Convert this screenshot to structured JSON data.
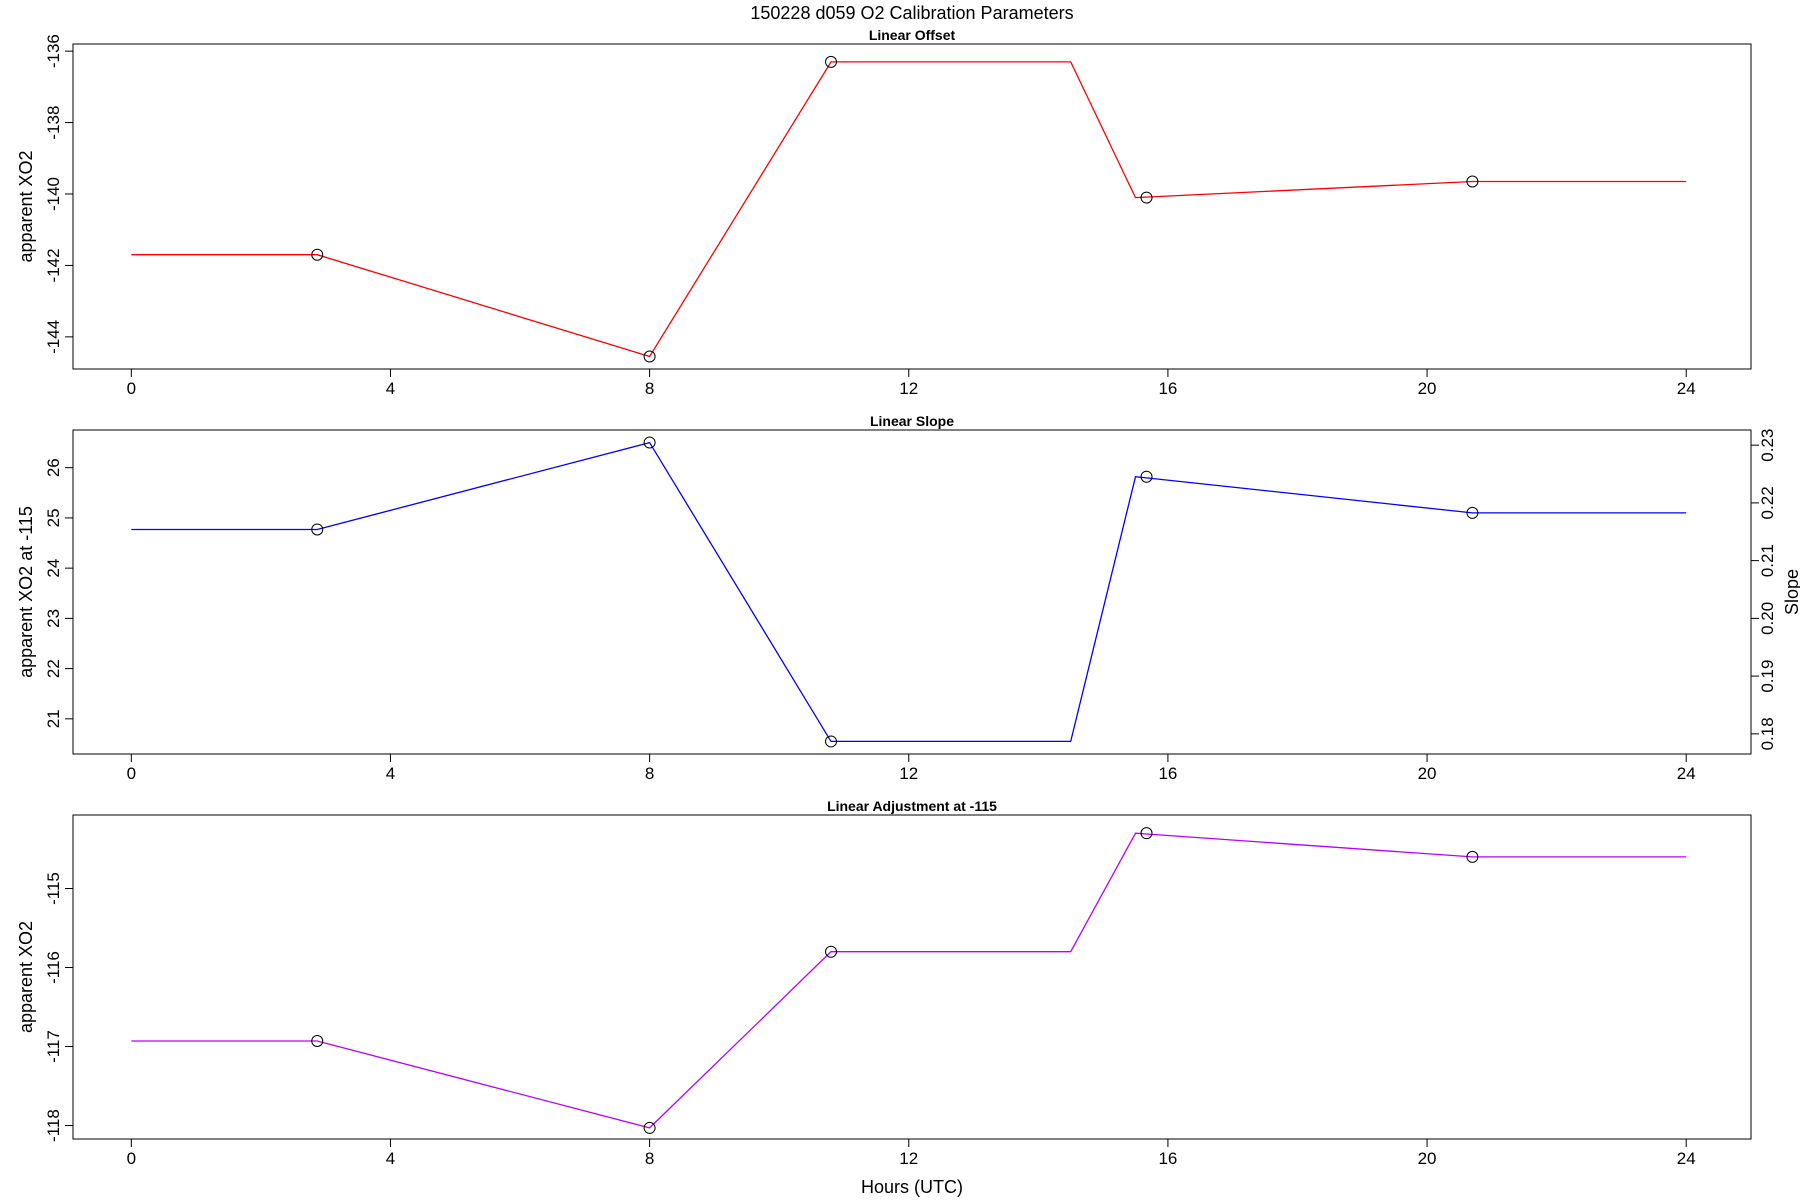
{
  "title": "150228   d059   O2 Calibration Parameters",
  "chart_data": [
    {
      "type": "line",
      "title": "Linear Offset",
      "xlabel": "",
      "ylabel": "apparent XO2",
      "xlim": [
        -0.9,
        25
      ],
      "ylim": [
        -144.9,
        -135.8
      ],
      "x_ticks": [
        0,
        4,
        8,
        12,
        16,
        20,
        24
      ],
      "y_ticks": [
        -144,
        -142,
        -140,
        -138,
        -136
      ],
      "color": "#ff0000",
      "line": {
        "x": [
          0,
          2.87,
          8.0,
          10.8,
          14.5,
          15.5,
          20.7,
          24
        ],
        "y": [
          -141.7,
          -141.7,
          -144.55,
          -136.3,
          -136.3,
          -140.1,
          -139.65,
          -139.65
        ]
      },
      "points": {
        "x": [
          2.87,
          8.0,
          10.8,
          15.67,
          20.7
        ],
        "y": [
          -141.7,
          -144.55,
          -136.3,
          -140.1,
          -139.65
        ]
      }
    },
    {
      "type": "line",
      "title": "Linear Slope",
      "xlabel": "",
      "ylabel": "apparent XO2 at -115",
      "y2label": "Slope",
      "xlim": [
        -0.9,
        25
      ],
      "ylim": [
        20.3,
        26.75
      ],
      "x_ticks": [
        0,
        4,
        8,
        12,
        16,
        20,
        24
      ],
      "y_ticks": [
        21,
        22,
        23,
        24,
        25,
        26
      ],
      "y2_ticks": [
        0.18,
        0.19,
        0.2,
        0.21,
        0.22,
        0.23
      ],
      "y2_tick_labels": [
        "0.18",
        "0.19",
        "0.20",
        "0.21",
        "0.22",
        "0.23"
      ],
      "y2_slope_at_21": 0.1826,
      "y2_slope_per_unit": 0.0087,
      "color": "#0000ff",
      "line": {
        "x": [
          0,
          2.87,
          8.0,
          10.8,
          14.5,
          15.5,
          20.7,
          24
        ],
        "y": [
          24.77,
          24.77,
          26.5,
          20.55,
          20.55,
          25.82,
          25.1,
          25.1
        ]
      },
      "points": {
        "x": [
          2.87,
          8.0,
          10.8,
          15.67,
          20.7
        ],
        "y": [
          24.77,
          26.5,
          20.55,
          25.82,
          25.1
        ]
      }
    },
    {
      "type": "line",
      "title": "Linear Adjustment at -115",
      "xlabel": "Hours (UTC)",
      "ylabel": "apparent XO2",
      "xlim": [
        -0.9,
        25
      ],
      "ylim": [
        -118.17,
        -114.07
      ],
      "x_ticks": [
        0,
        4,
        8,
        12,
        16,
        20,
        24
      ],
      "y_ticks": [
        -118,
        -117,
        -116,
        -115
      ],
      "color": "#b700ff",
      "line": {
        "x": [
          0,
          2.87,
          8.0,
          10.8,
          14.5,
          15.5,
          20.7,
          24
        ],
        "y": [
          -116.93,
          -116.93,
          -118.03,
          -115.8,
          -115.8,
          -114.3,
          -114.6,
          -114.6
        ]
      },
      "points": {
        "x": [
          2.87,
          8.0,
          10.8,
          15.67,
          20.7
        ],
        "y": [
          -116.93,
          -118.03,
          -115.8,
          -114.3,
          -114.6
        ]
      }
    }
  ]
}
